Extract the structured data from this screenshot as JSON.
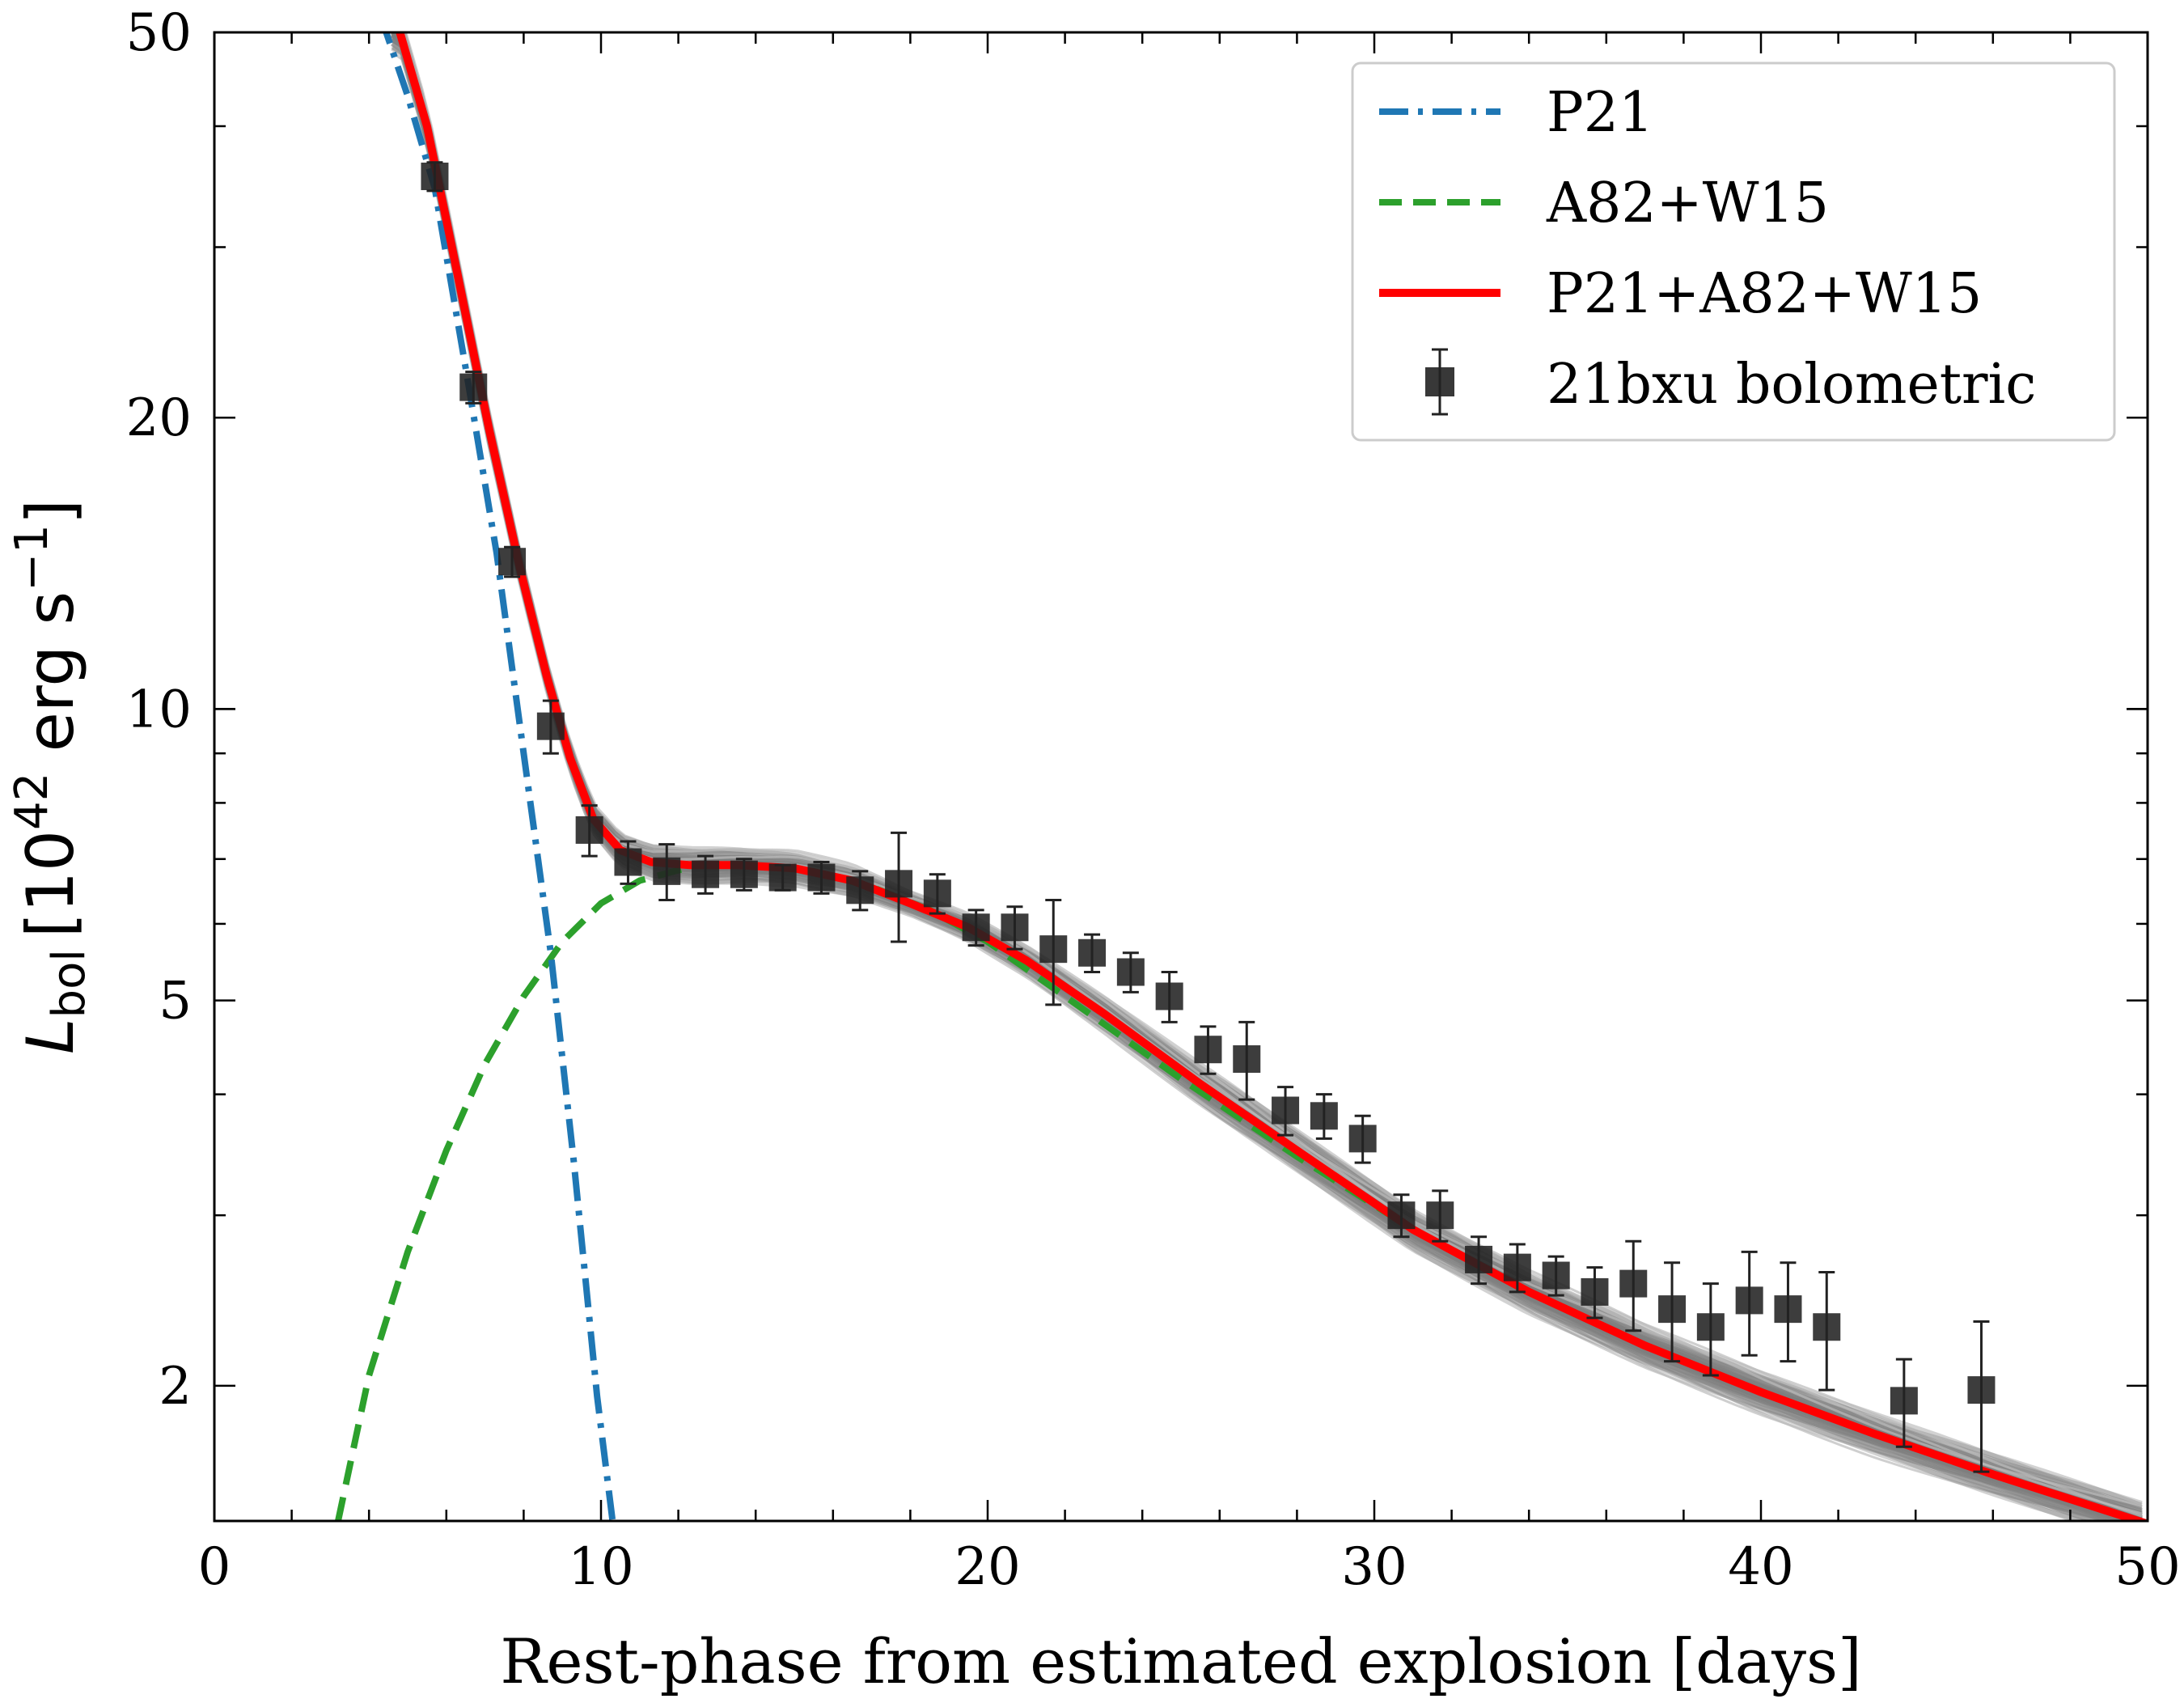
{
  "chart_data": {
    "type": "scatter",
    "title": "",
    "xlabel": "Rest-phase from estimated explosion [days]",
    "ylabel": {
      "symbol": "L",
      "subscript": "bol",
      "bracket_open": "[10",
      "exponent": "42",
      "units": " erg s",
      "units_exponent": "−1",
      "bracket_close": "]"
    },
    "xlim": [
      0,
      50
    ],
    "ylim": [
      1.45,
      50
    ],
    "yscale": "log",
    "xticks": [
      0,
      10,
      20,
      30,
      40,
      50
    ],
    "xtick_labels": [
      "0",
      "10",
      "20",
      "30",
      "40",
      "50"
    ],
    "yticks": [
      2,
      5,
      10,
      20,
      50
    ],
    "ytick_labels": [
      "2",
      "5",
      "10",
      "20",
      "50"
    ],
    "legend_position": "top-right",
    "legend": [
      {
        "label": "P21",
        "style": "dashdot",
        "color": "#1f77b4"
      },
      {
        "label": "A82+W15",
        "style": "dashed",
        "color": "#2ca02c"
      },
      {
        "label": "P21+A82+W15",
        "style": "solid",
        "color": "#ff0000"
      },
      {
        "label": "21bxu bolometric",
        "style": "square-errorbar",
        "color": "#222222"
      }
    ],
    "series": [
      {
        "name": "P21",
        "style": "dashdot",
        "color": "#1f77b4",
        "x": [
          4.3,
          5,
          5.7,
          6.5,
          7.3,
          8,
          8.7,
          9.3,
          9.9,
          10.3
        ],
        "y": [
          52,
          43,
          34.5,
          22.5,
          14.5,
          9,
          5.6,
          3.4,
          1.95,
          1.45
        ]
      },
      {
        "name": "A82+W15",
        "style": "dashed",
        "color": "#2ca02c",
        "x": [
          3.2,
          4,
          5,
          6,
          7,
          8,
          9,
          10,
          11,
          12.5,
          14,
          15.5,
          17,
          18.5,
          20,
          22,
          25,
          28,
          31,
          34,
          37,
          40,
          43,
          46,
          50
        ],
        "y": [
          1.45,
          2.05,
          2.75,
          3.5,
          4.3,
          5.05,
          5.75,
          6.3,
          6.65,
          6.9,
          6.9,
          6.8,
          6.55,
          6.2,
          5.75,
          5.05,
          4.15,
          3.45,
          2.9,
          2.5,
          2.2,
          1.97,
          1.78,
          1.62,
          1.44
        ]
      },
      {
        "name": "P21+A82+W15",
        "style": "solid",
        "color": "#ff0000",
        "x": [
          4.8,
          5.5,
          6.3,
          7.1,
          7.9,
          8.6,
          9.2,
          9.8,
          10.5,
          11.3,
          12.3,
          13.5,
          15,
          16.5,
          18,
          19.5,
          21,
          23,
          25.5,
          28,
          31,
          34,
          37,
          40,
          43,
          46,
          50
        ],
        "y": [
          50,
          40,
          28,
          19.5,
          14,
          10.8,
          8.9,
          7.7,
          7.15,
          6.95,
          6.9,
          6.9,
          6.85,
          6.65,
          6.3,
          5.95,
          5.5,
          4.85,
          4.1,
          3.5,
          2.9,
          2.5,
          2.2,
          1.97,
          1.78,
          1.62,
          1.44
        ]
      },
      {
        "name": "21bxu bolometric",
        "type": "errorbar",
        "x": [
          5.7,
          6.7,
          7.7,
          8.7,
          9.7,
          10.7,
          11.7,
          12.7,
          13.7,
          14.7,
          15.7,
          16.7,
          17.7,
          18.7,
          19.7,
          20.7,
          21.7,
          22.7,
          23.7,
          24.7,
          25.7,
          26.7,
          27.7,
          28.7,
          29.7,
          30.7,
          31.7,
          32.7,
          33.7,
          34.7,
          35.7,
          36.7,
          37.7,
          38.7,
          39.7,
          40.7,
          41.7,
          43.7,
          45.7
        ],
        "y": [
          35.5,
          21.5,
          14.2,
          9.6,
          7.5,
          6.95,
          6.8,
          6.75,
          6.75,
          6.7,
          6.7,
          6.5,
          6.6,
          6.45,
          5.95,
          5.95,
          5.65,
          5.6,
          5.35,
          5.05,
          4.45,
          4.35,
          3.85,
          3.8,
          3.6,
          3.0,
          3.0,
          2.7,
          2.65,
          2.6,
          2.5,
          2.55,
          2.4,
          2.3,
          2.45,
          2.4,
          2.3,
          1.93,
          1.98
        ],
        "yerr": [
          1.2,
          0.8,
          0.5,
          0.6,
          0.45,
          0.35,
          0.45,
          0.3,
          0.25,
          0.2,
          0.25,
          0.3,
          0.85,
          0.3,
          0.25,
          0.3,
          0.7,
          0.25,
          0.25,
          0.3,
          0.25,
          0.4,
          0.22,
          0.2,
          0.2,
          0.15,
          0.18,
          0.15,
          0.15,
          0.12,
          0.15,
          0.27,
          0.28,
          0.25,
          0.3,
          0.28,
          0.32,
          0.2,
          0.35
        ]
      }
    ]
  }
}
